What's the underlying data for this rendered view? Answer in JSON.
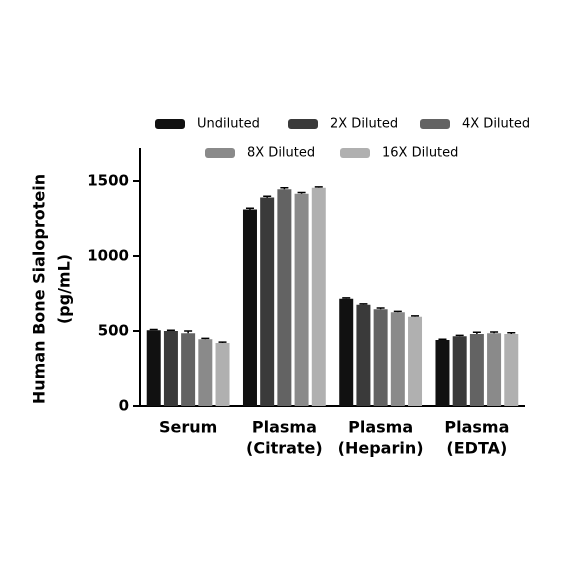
{
  "chart_data": {
    "type": "bar",
    "ylabel": [
      "Human Bone  Sialoprotein",
      "(pg/mL)"
    ],
    "categories": [
      [
        "Serum"
      ],
      [
        "Plasma",
        "(Citrate)"
      ],
      [
        "Plasma",
        "(Heparin)"
      ],
      [
        "Plasma",
        "(EDTA)"
      ]
    ],
    "series": [
      {
        "name": "Undiluted",
        "color": "#111111",
        "values": [
          505,
          1310,
          715,
          440
        ],
        "errors": [
          5,
          8,
          6,
          5
        ]
      },
      {
        "name": "2X Diluted",
        "color": "#3a3a3a",
        "values": [
          500,
          1390,
          675,
          465
        ],
        "errors": [
          5,
          8,
          6,
          6
        ]
      },
      {
        "name": "4X Diluted",
        "color": "#636363",
        "values": [
          485,
          1445,
          645,
          480
        ],
        "errors": [
          15,
          10,
          8,
          12
        ]
      },
      {
        "name": "8X Diluted",
        "color": "#8a8a8a",
        "values": [
          445,
          1415,
          625,
          485
        ],
        "errors": [
          6,
          8,
          6,
          8
        ]
      },
      {
        "name": "16X Diluted",
        "color": "#b0b0b0",
        "values": [
          420,
          1455,
          595,
          480
        ],
        "errors": [
          6,
          6,
          6,
          8
        ]
      }
    ],
    "ylim": [
      0,
      1720
    ],
    "yticks": [
      0,
      500,
      1000,
      1500
    ]
  }
}
